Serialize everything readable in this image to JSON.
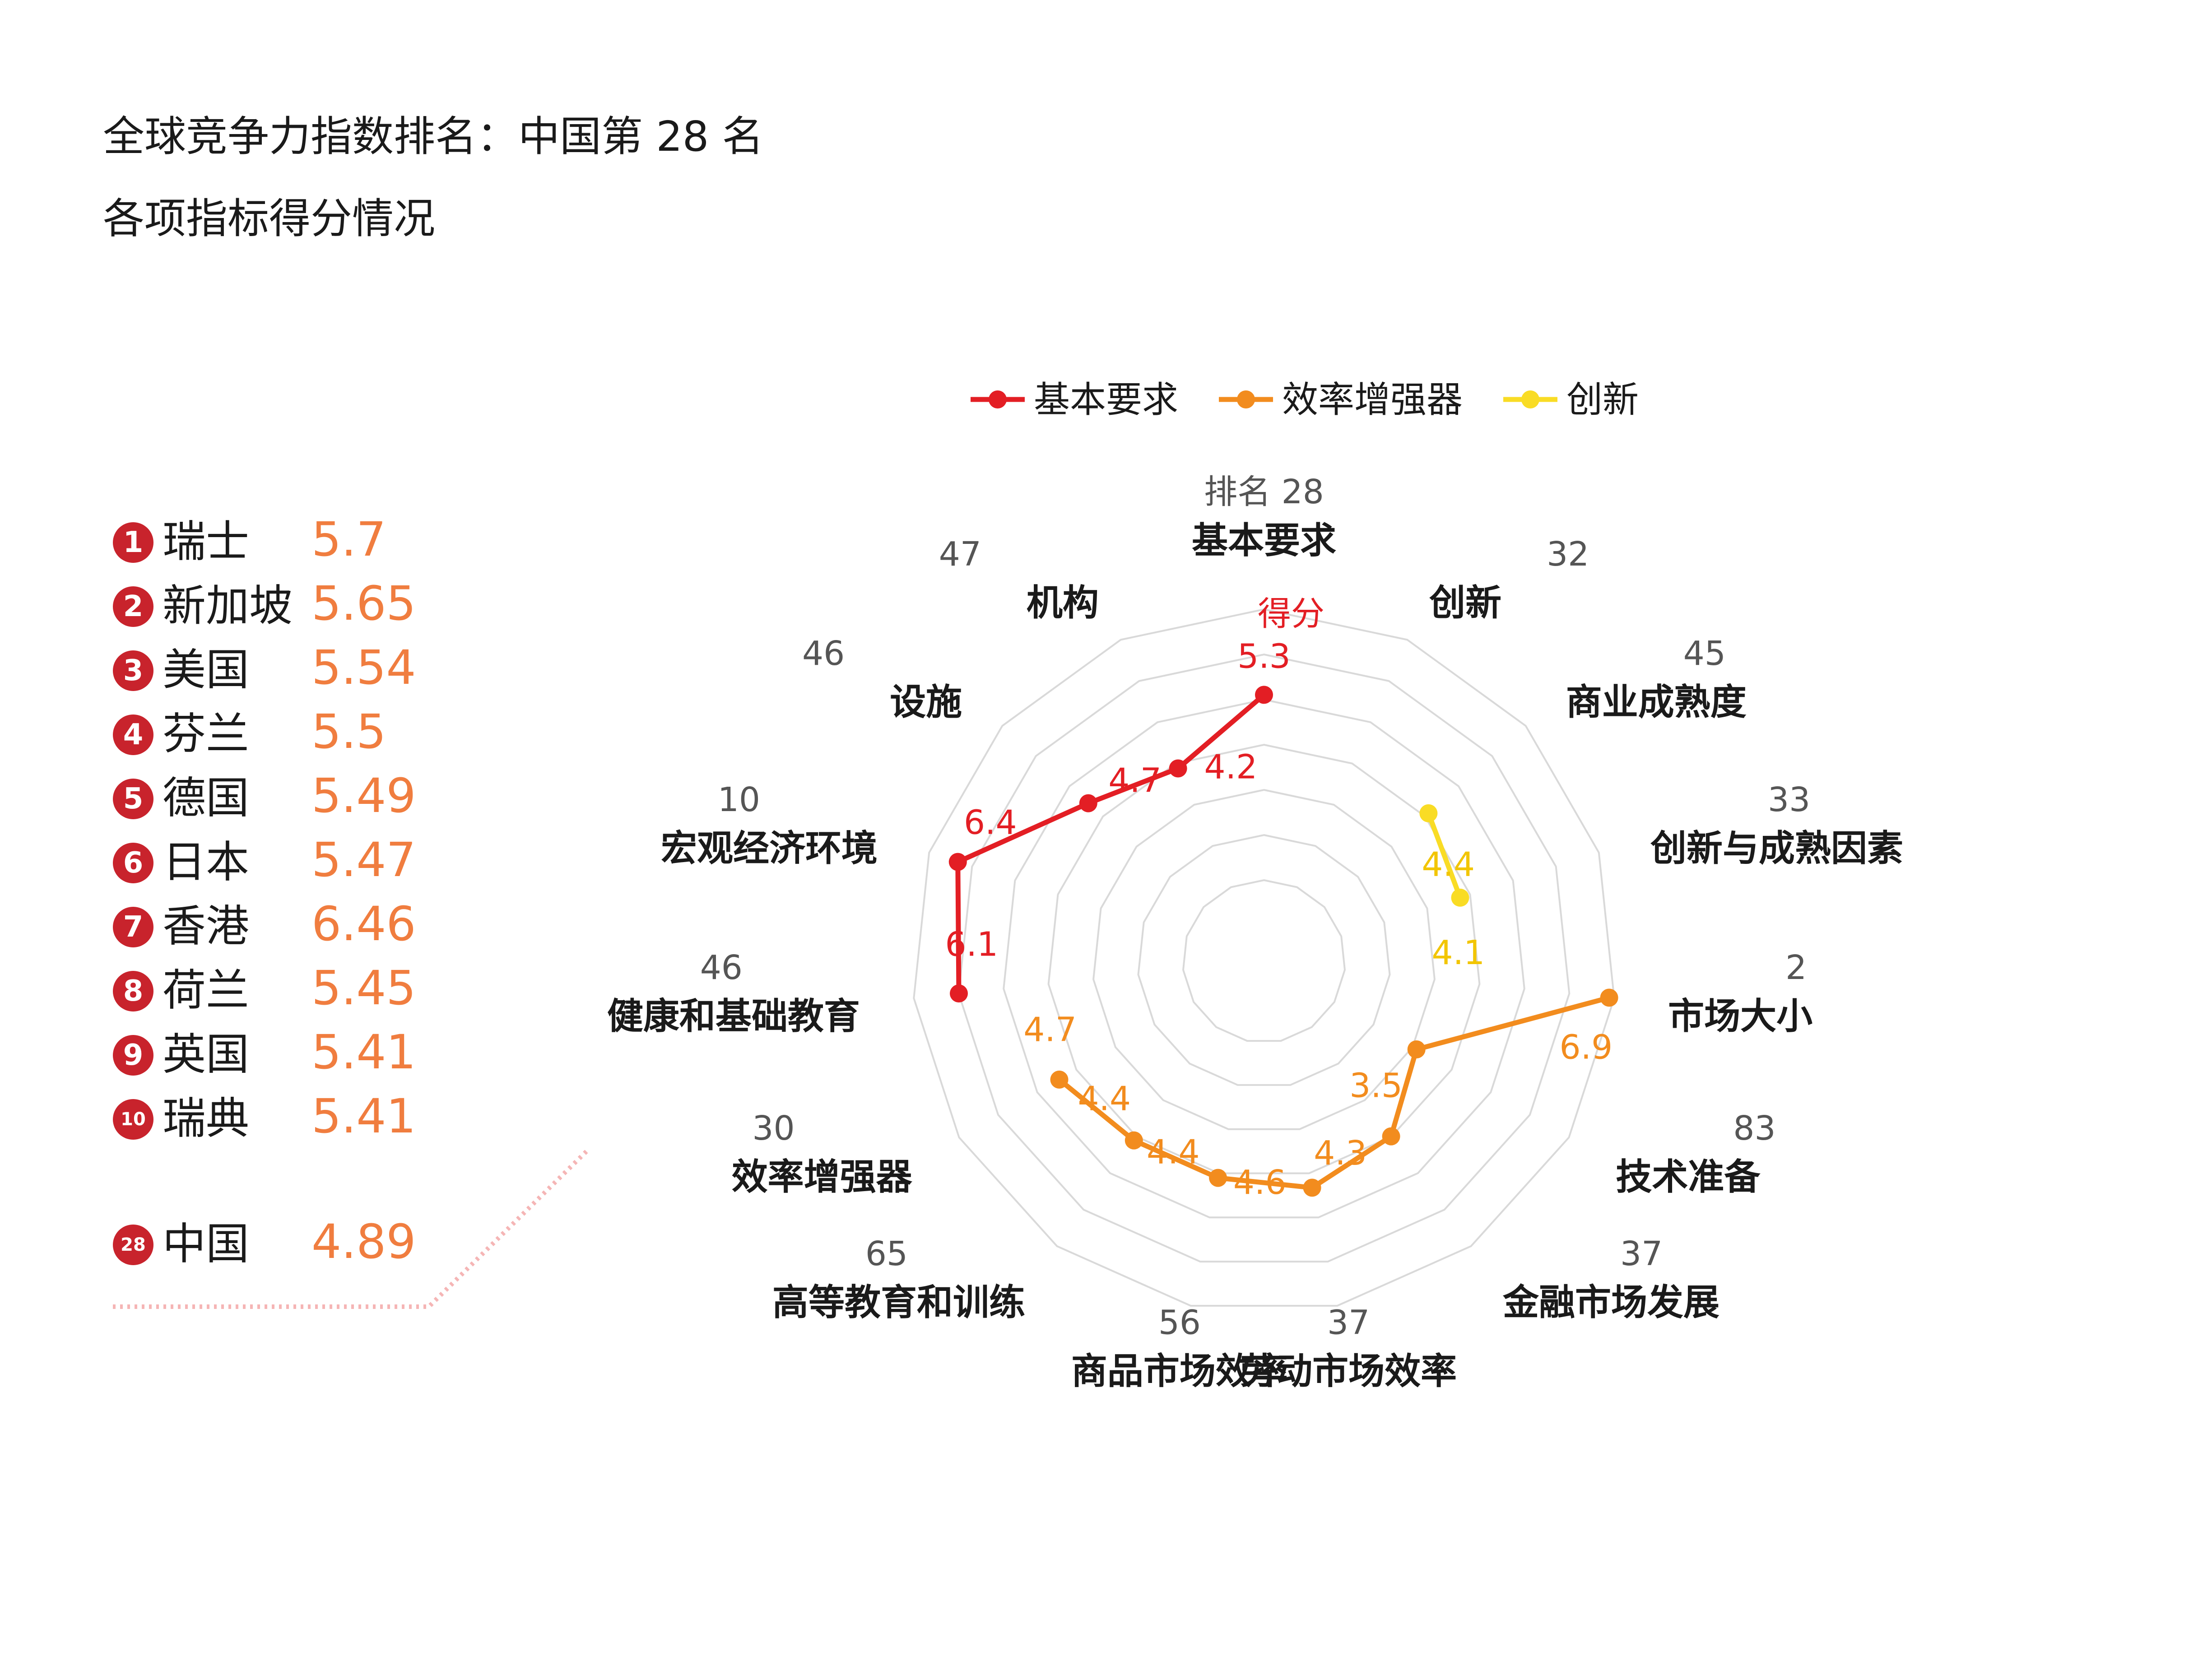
{
  "title": "全球竞争力指数排名：中国第 28 名",
  "subtitle": "各项指标得分情况",
  "colors": {
    "basic": "#e31e24",
    "efficiency": "#f28c1e",
    "innovation": "#f9dc25",
    "score_text": "#f07d3f",
    "badge": "#c8232c",
    "grid": "#d9d9d9"
  },
  "ranking": [
    {
      "rank": "1",
      "country": "瑞士",
      "score": "5.7"
    },
    {
      "rank": "2",
      "country": "新加坡",
      "score": "5.65"
    },
    {
      "rank": "3",
      "country": "美国",
      "score": "5.54"
    },
    {
      "rank": "4",
      "country": "芬兰",
      "score": "5.5"
    },
    {
      "rank": "5",
      "country": "德国",
      "score": "5.49"
    },
    {
      "rank": "6",
      "country": "日本",
      "score": "5.47"
    },
    {
      "rank": "7",
      "country": "香港",
      "score": "6.46"
    },
    {
      "rank": "8",
      "country": "荷兰",
      "score": "5.45"
    },
    {
      "rank": "9",
      "country": "英国",
      "score": "5.41"
    },
    {
      "rank": "10",
      "country": "瑞典",
      "score": "5.41"
    },
    {
      "rank": "28",
      "country": "中国",
      "score": "4.89"
    }
  ],
  "chart_data": {
    "type": "radar",
    "legend": [
      "基本要求",
      "效率增强器",
      "创新"
    ],
    "legend_position": "top",
    "grid": true,
    "rank_header": "排名",
    "score_header": "得分",
    "axes": [
      {
        "label": "基本要求",
        "rank": "28",
        "score": 5.3,
        "score_label": "5.3",
        "series": "基本要求"
      },
      {
        "label": "创新",
        "rank": "32"
      },
      {
        "label": "商业成熟度",
        "rank": "45",
        "score": 4.4,
        "score_label": "4.4",
        "series": "创新"
      },
      {
        "label": "创新与成熟因素",
        "rank": "33",
        "score": 4.1,
        "score_label": "4.1",
        "series": "创新"
      },
      {
        "label": "市场大小",
        "rank": "2",
        "score": 6.9,
        "score_label": "6.9",
        "series": "效率增强器"
      },
      {
        "label": "技术准备",
        "rank": "83",
        "score": 3.5,
        "score_label": "3.5",
        "series": "效率增强器"
      },
      {
        "label": "金融市场发展",
        "rank": "37",
        "score": 4.3,
        "score_label": "4.3",
        "series": "效率增强器"
      },
      {
        "label": "劳动市场效率",
        "rank": "37",
        "score": 4.6,
        "score_label": "4.6",
        "series": "效率增强器"
      },
      {
        "label": "商品市场效率",
        "rank": "56",
        "score": 4.4,
        "score_label": "4.4",
        "series": "效率增强器"
      },
      {
        "label": "高等教育和训练",
        "rank": "65",
        "score": 4.4,
        "score_label": "4.4",
        "series": "效率增强器"
      },
      {
        "label": "效率增强器",
        "rank": "30",
        "score": 4.7,
        "score_label": "4.7",
        "series": "效率增强器"
      },
      {
        "label": "健康和基础教育",
        "rank": "46",
        "score": 6.1,
        "score_label": "6.1",
        "series": "基本要求"
      },
      {
        "label": "宏观经济环境",
        "rank": "10",
        "score": 6.4,
        "score_label": "6.4",
        "series": "基本要求"
      },
      {
        "label": "设施",
        "rank": "46",
        "score": 4.7,
        "score_label": "4.7",
        "series": "基本要求"
      },
      {
        "label": "机构",
        "rank": "47",
        "score": 4.2,
        "score_label": "4.2",
        "series": "基本要求"
      }
    ],
    "series": [
      {
        "name": "基本要求",
        "axes": [
          "基本要求",
          "机构",
          "设施",
          "宏观经济环境",
          "健康和基础教育"
        ]
      },
      {
        "name": "效率增强器",
        "axes": [
          "效率增强器",
          "高等教育和训练",
          "商品市场效率",
          "劳动市场效率",
          "金融市场发展",
          "技术准备",
          "市场大小"
        ]
      },
      {
        "name": "创新",
        "axes": [
          "创新",
          "商业成熟度",
          "创新与成熟因素"
        ]
      }
    ],
    "rings": 6
  }
}
